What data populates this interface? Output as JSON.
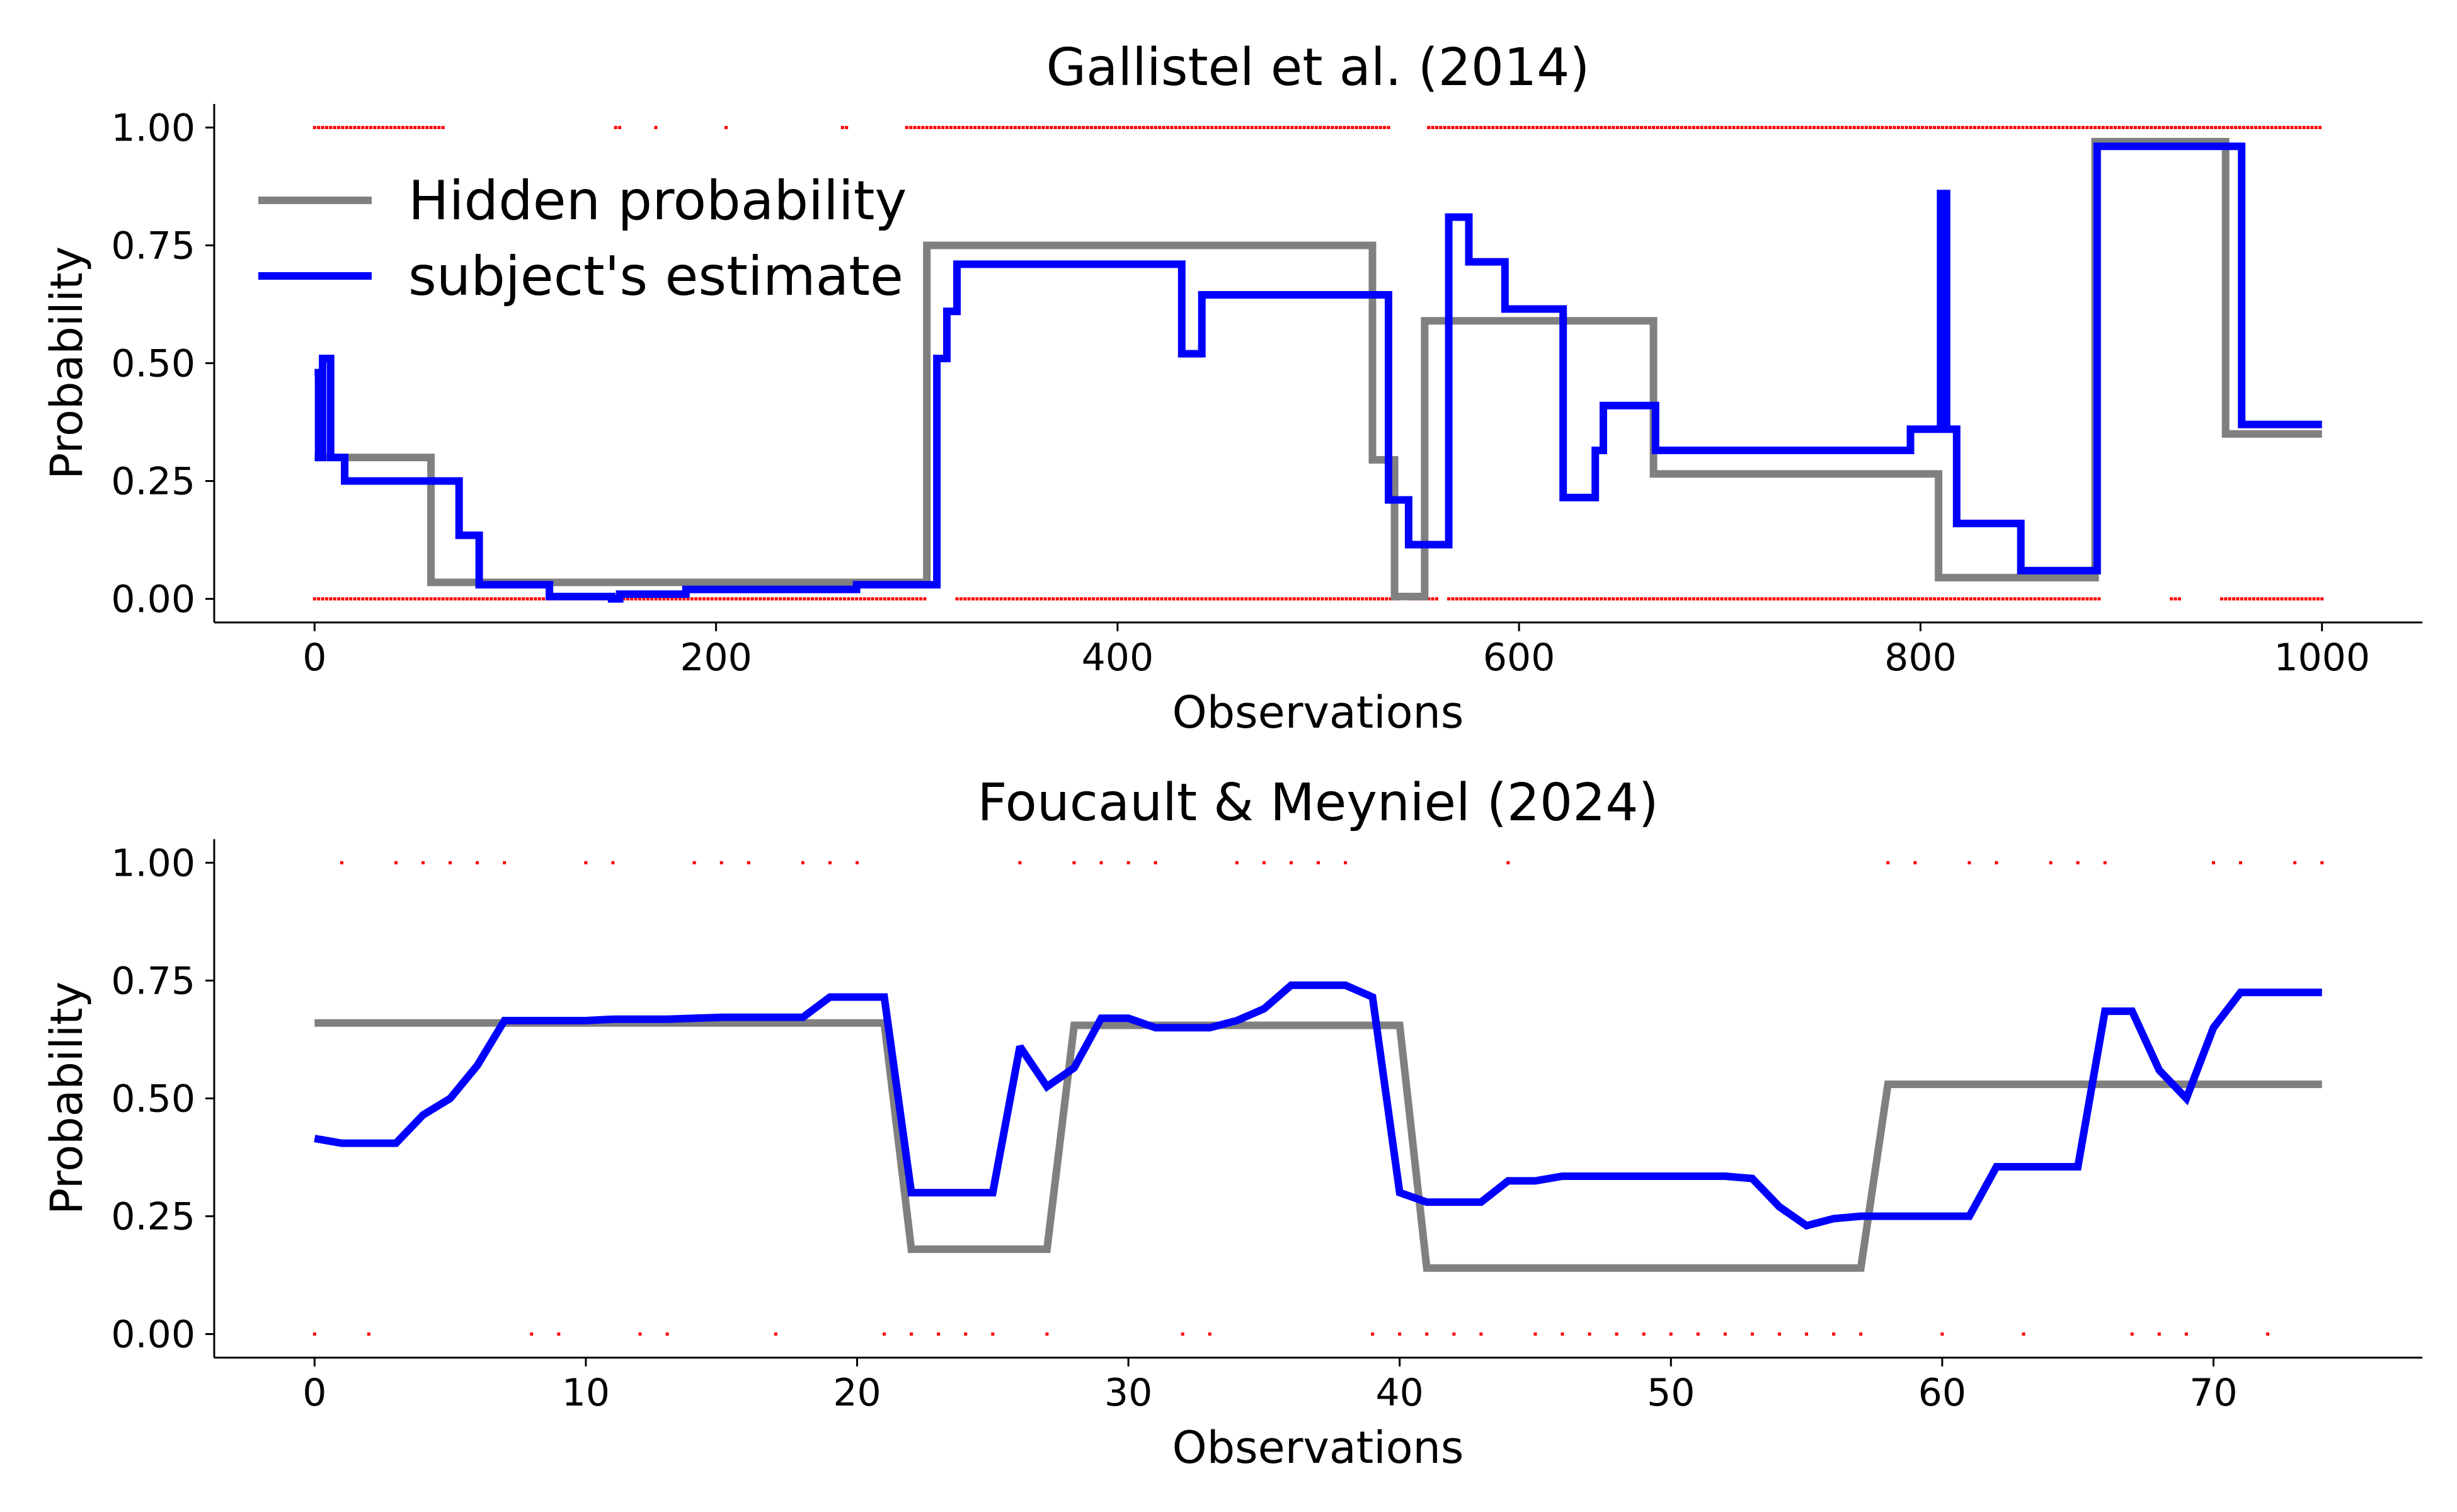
{
  "figure": {
    "colors": {
      "hidden": "#808080",
      "estimate": "#0000ff",
      "observations": "#ff0000"
    }
  },
  "chart_data": [
    {
      "type": "line",
      "title": "Gallistel et al. (2014)",
      "xlabel": "Observations",
      "ylabel": "Probability",
      "xlim": [
        -50,
        1050
      ],
      "ylim": [
        -0.05,
        1.05
      ],
      "xticks": [
        0,
        200,
        400,
        600,
        800,
        1000
      ],
      "yticks": [
        0.0,
        0.25,
        0.5,
        0.75,
        1.0
      ],
      "xtick_labels": [
        "0",
        "200",
        "400",
        "600",
        "800",
        "1000"
      ],
      "ytick_labels": [
        "0.00",
        "0.25",
        "0.50",
        "0.75",
        "1.00"
      ],
      "legend": {
        "position": "upper-left",
        "entries": [
          "Hidden probability",
          "subject's estimate"
        ]
      },
      "series": [
        {
          "name": "Hidden probability",
          "color": "#808080",
          "step": true,
          "x": [
            0,
            58,
            58,
            305,
            305,
            527,
            527,
            538,
            538,
            553,
            553,
            667,
            667,
            809,
            809,
            887,
            887,
            952,
            952,
            1000
          ],
          "y": [
            0.3,
            0.3,
            0.035,
            0.035,
            0.75,
            0.75,
            0.295,
            0.295,
            0.005,
            0.005,
            0.59,
            0.59,
            0.265,
            0.265,
            0.045,
            0.045,
            0.97,
            0.97,
            0.35,
            0.35
          ]
        },
        {
          "name": "subject's estimate",
          "color": "#0000ff",
          "step": true,
          "x": [
            0,
            2,
            2,
            4,
            4,
            8,
            8,
            15,
            15,
            72,
            72,
            82,
            82,
            85,
            85,
            117,
            117,
            148,
            148,
            152,
            152,
            185,
            185,
            270,
            270,
            310,
            310,
            315,
            315,
            320,
            320,
            432,
            432,
            442,
            442,
            530,
            530,
            535,
            535,
            545,
            545,
            565,
            565,
            575,
            575,
            585,
            585,
            593,
            593,
            622,
            622,
            638,
            638,
            642,
            642,
            668,
            668,
            695,
            695,
            795,
            795,
            805,
            805,
            810,
            810,
            813,
            813,
            818,
            818,
            850,
            850,
            880,
            880,
            888,
            888,
            960,
            960,
            1000
          ],
          "y": [
            0.48,
            0.48,
            0.3,
            0.3,
            0.51,
            0.51,
            0.3,
            0.3,
            0.25,
            0.25,
            0.135,
            0.135,
            0.03,
            0.03,
            0.03,
            0.03,
            0.005,
            0.005,
            0.0,
            0.0,
            0.01,
            0.01,
            0.02,
            0.02,
            0.03,
            0.03,
            0.51,
            0.51,
            0.61,
            0.61,
            0.71,
            0.71,
            0.52,
            0.52,
            0.645,
            0.645,
            0.645,
            0.645,
            0.21,
            0.21,
            0.115,
            0.115,
            0.81,
            0.81,
            0.715,
            0.715,
            0.715,
            0.715,
            0.615,
            0.615,
            0.215,
            0.215,
            0.315,
            0.315,
            0.41,
            0.41,
            0.315,
            0.315,
            0.315,
            0.315,
            0.36,
            0.36,
            0.36,
            0.36,
            0.86,
            0.86,
            0.36,
            0.36,
            0.16,
            0.16,
            0.06,
            0.06,
            0.06,
            0.06,
            0.96,
            0.96,
            0.37,
            0.37
          ]
        },
        {
          "name": "observations",
          "color": "#ff0000",
          "type": "scatter",
          "marker_size": "tiny",
          "ranges_at_1": [
            [
              0,
              65
            ],
            [
              150,
              152
            ],
            [
              170,
              170
            ],
            [
              205,
              205
            ],
            [
              263,
              265
            ],
            [
              295,
              535
            ],
            [
              555,
              1000
            ]
          ],
          "ranges_at_0": [
            [
              0,
              305
            ],
            [
              320,
              540
            ],
            [
              545,
              560
            ],
            [
              565,
              890
            ],
            [
              925,
              930
            ],
            [
              950,
              1000
            ]
          ],
          "density": 0.5
        }
      ]
    },
    {
      "type": "line",
      "title": "Foucault & Meyniel (2024)",
      "xlabel": "Observations",
      "ylabel": "Probability",
      "xlim": [
        -3.7,
        77.7
      ],
      "ylim": [
        -0.05,
        1.05
      ],
      "xticks": [
        0,
        10,
        20,
        30,
        40,
        50,
        60,
        70
      ],
      "yticks": [
        0.0,
        0.25,
        0.5,
        0.75,
        1.0
      ],
      "xtick_labels": [
        "0",
        "10",
        "20",
        "30",
        "40",
        "50",
        "60",
        "70"
      ],
      "ytick_labels": [
        "0.00",
        "0.25",
        "0.50",
        "0.75",
        "1.00"
      ],
      "series": [
        {
          "name": "Hidden probability",
          "color": "#808080",
          "x": [
            0,
            21,
            22,
            27,
            28,
            40,
            41,
            57,
            58,
            74
          ],
          "y": [
            0.66,
            0.66,
            0.18,
            0.18,
            0.655,
            0.655,
            0.14,
            0.14,
            0.53,
            0.53
          ]
        },
        {
          "name": "subject's estimate",
          "color": "#0000ff",
          "x": [
            0,
            1,
            2,
            3,
            4,
            5,
            6,
            7,
            8,
            9,
            10,
            11,
            12,
            13,
            14,
            15,
            16,
            17,
            18,
            19,
            20,
            21,
            22,
            23,
            24,
            25,
            26,
            27,
            28,
            29,
            30,
            31,
            32,
            33,
            34,
            35,
            36,
            37,
            38,
            39,
            40,
            41,
            42,
            43,
            44,
            45,
            46,
            47,
            48,
            49,
            50,
            51,
            52,
            53,
            54,
            55,
            56,
            57,
            58,
            59,
            60,
            61,
            62,
            63,
            64,
            65,
            66,
            67,
            68,
            69,
            70,
            71,
            72,
            73,
            74
          ],
          "y": [
            0.415,
            0.405,
            0.405,
            0.405,
            0.465,
            0.5,
            0.57,
            0.665,
            0.665,
            0.665,
            0.665,
            0.668,
            0.668,
            0.668,
            0.67,
            0.672,
            0.672,
            0.672,
            0.672,
            0.715,
            0.715,
            0.715,
            0.3,
            0.3,
            0.3,
            0.3,
            0.61,
            0.525,
            0.565,
            0.67,
            0.67,
            0.65,
            0.65,
            0.65,
            0.665,
            0.69,
            0.74,
            0.74,
            0.74,
            0.715,
            0.3,
            0.28,
            0.28,
            0.28,
            0.325,
            0.325,
            0.335,
            0.335,
            0.335,
            0.335,
            0.335,
            0.335,
            0.335,
            0.33,
            0.27,
            0.23,
            0.245,
            0.25,
            0.25,
            0.25,
            0.25,
            0.25,
            0.355,
            0.355,
            0.355,
            0.355,
            0.685,
            0.685,
            0.56,
            0.5,
            0.65,
            0.725,
            0.725,
            0.725,
            0.725
          ]
        },
        {
          "name": "observations",
          "color": "#ff0000",
          "type": "scatter",
          "marker_size": "tiny",
          "x_at_1": [
            1,
            3,
            4,
            5,
            6,
            7,
            10,
            11,
            14,
            15,
            16,
            18,
            19,
            20,
            26,
            28,
            29,
            30,
            31,
            34,
            35,
            36,
            37,
            38,
            44,
            58,
            59,
            61,
            62,
            64,
            65,
            66,
            70,
            71,
            73,
            74
          ],
          "x_at_0": [
            0,
            2,
            8,
            9,
            12,
            13,
            17,
            21,
            22,
            23,
            24,
            25,
            27,
            32,
            33,
            39,
            40,
            41,
            42,
            43,
            45,
            46,
            47,
            48,
            49,
            50,
            51,
            52,
            53,
            54,
            55,
            56,
            57,
            60,
            63,
            67,
            68,
            69,
            72
          ]
        }
      ]
    }
  ]
}
